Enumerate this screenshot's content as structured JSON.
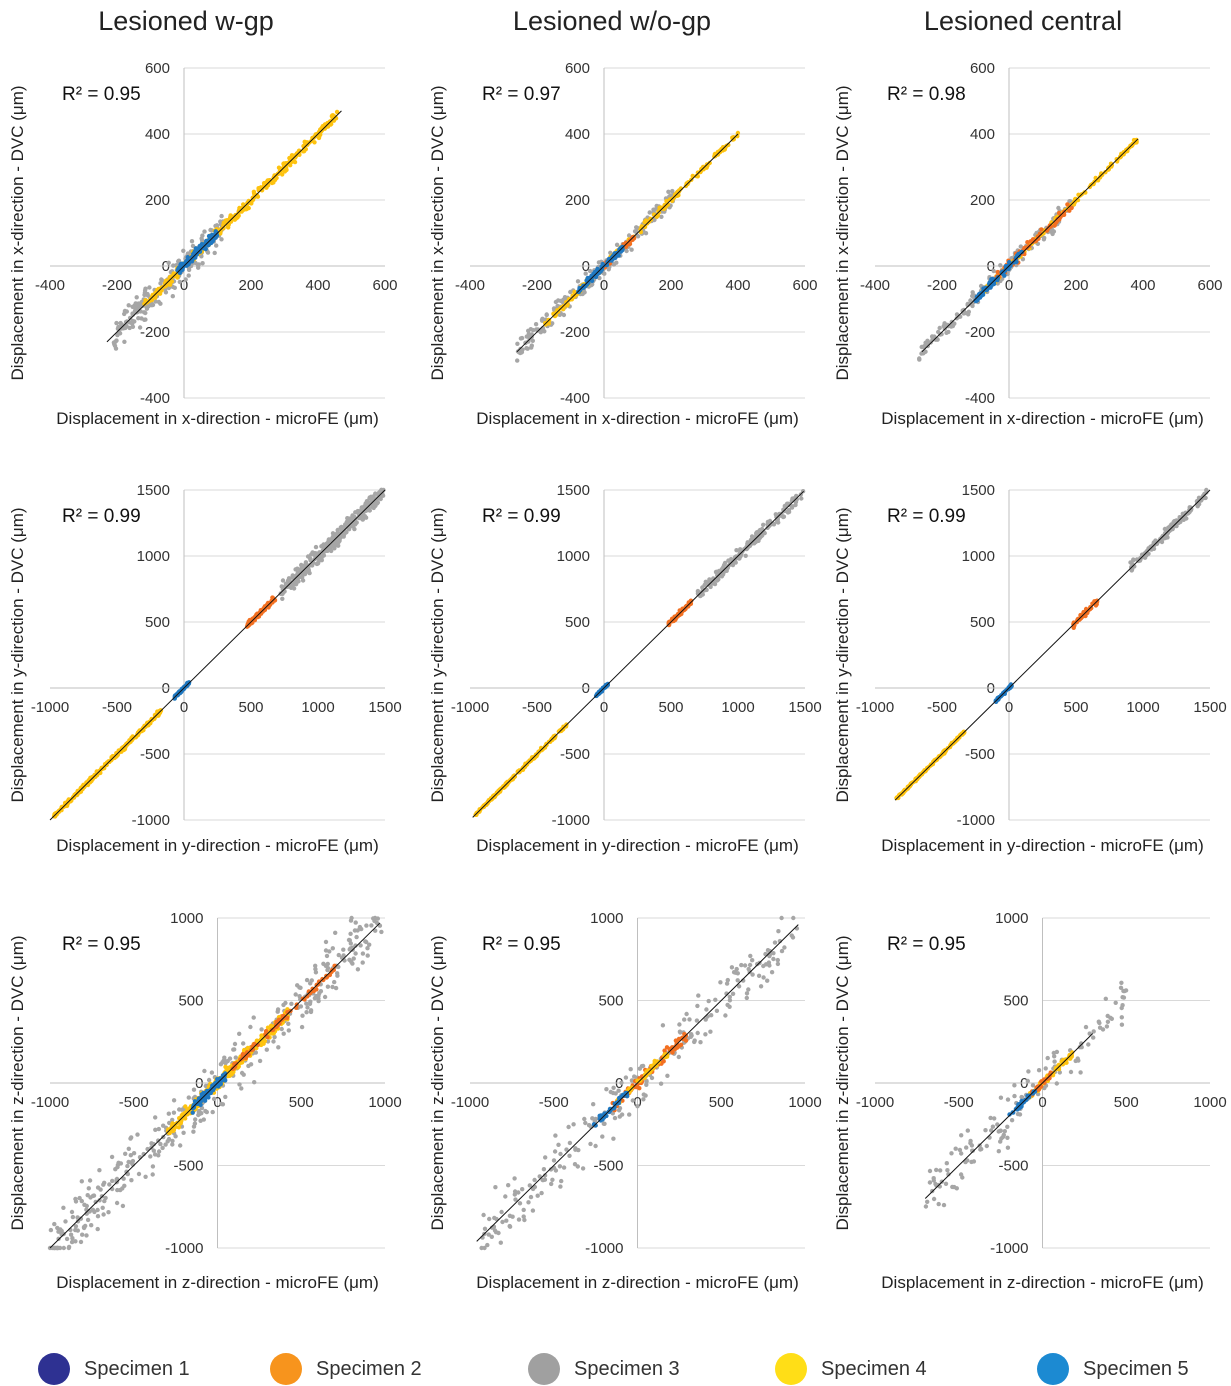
{
  "column_titles": [
    "Lesioned w-gp",
    "Lesioned w/o-gp",
    "Lesioned central"
  ],
  "legend": [
    {
      "label": "Specimen 1",
      "color": "#2e3192"
    },
    {
      "label": "Specimen 2",
      "color": "#f7941d"
    },
    {
      "label": "Specimen 3",
      "color": "#a0a0a0"
    },
    {
      "label": "Specimen 4",
      "color": "#ffde17"
    },
    {
      "label": "Specimen 5",
      "color": "#1c8ad2"
    }
  ],
  "series_colors": {
    "Specimen 2": "#f37021",
    "Specimen 3": "#a6a6a6",
    "Specimen 4": "#fec30f",
    "Specimen 5": "#1f78c1"
  },
  "chart_data": [
    {
      "type": "scatter",
      "panel": "x-w-gp",
      "xlabel": "Displacement in x-direction - microFE (μm)",
      "ylabel": "Displacement in x-direction - DVC (μm)",
      "r2": "R² = 0.95",
      "xlim": [
        -400,
        600
      ],
      "ylim": [
        -400,
        600
      ],
      "ticks": [
        -400,
        -200,
        0,
        200,
        400,
        600
      ],
      "tick_labels": [
        "-400",
        "-200",
        "0",
        "200",
        "400",
        "600"
      ],
      "fit": [
        [
          -230,
          -230
        ],
        [
          470,
          470
        ]
      ],
      "series": [
        {
          "name": "Specimen 3",
          "ranges": [
            [
              -210,
              120
            ]
          ],
          "spread": 40,
          "n": 220
        },
        {
          "name": "Specimen 4",
          "ranges": [
            [
              -120,
              460
            ]
          ],
          "spread": 12,
          "n": 320
        },
        {
          "name": "Specimen 5",
          "ranges": [
            [
              -20,
              100
            ]
          ],
          "spread": 12,
          "n": 110
        }
      ]
    },
    {
      "type": "scatter",
      "panel": "x-w/o-gp",
      "xlabel": "Displacement in x-direction - microFE (μm)",
      "ylabel": "Displacement in x-direction - DVC (μm)",
      "r2": "R² = 0.97",
      "xlim": [
        -400,
        600
      ],
      "ylim": [
        -400,
        600
      ],
      "ticks": [
        -400,
        -200,
        0,
        200,
        400,
        600
      ],
      "tick_labels": [
        "-400",
        "-200",
        "0",
        "200",
        "400",
        "600"
      ],
      "fit": [
        [
          -260,
          -260
        ],
        [
          400,
          400
        ]
      ],
      "series": [
        {
          "name": "Specimen 3",
          "ranges": [
            [
              -260,
              220
            ]
          ],
          "spread": 28,
          "n": 220
        },
        {
          "name": "Specimen 4",
          "ranges": [
            [
              -180,
              400
            ]
          ],
          "spread": 8,
          "n": 180
        },
        {
          "name": "Specimen 2",
          "ranges": [
            [
              0,
              90
            ]
          ],
          "spread": 10,
          "n": 40
        },
        {
          "name": "Specimen 5",
          "ranges": [
            [
              -80,
              60
            ]
          ],
          "spread": 10,
          "n": 80
        }
      ]
    },
    {
      "type": "scatter",
      "panel": "x-central",
      "xlabel": "Displacement in x-direction - microFE (μm)",
      "ylabel": "Displacement in x-direction - DVC (μm)",
      "r2": "R² = 0.98",
      "xlim": [
        -400,
        600
      ],
      "ylim": [
        -400,
        600
      ],
      "ticks": [
        -400,
        -200,
        0,
        200,
        400,
        600
      ],
      "tick_labels": [
        "-400",
        "-200",
        "0",
        "200",
        "400",
        "600"
      ],
      "fit": [
        [
          -260,
          -260
        ],
        [
          385,
          385
        ]
      ],
      "series": [
        {
          "name": "Specimen 3",
          "ranges": [
            [
              -270,
              200
            ]
          ],
          "spread": 22,
          "n": 200
        },
        {
          "name": "Specimen 4",
          "ranges": [
            [
              -80,
              385
            ]
          ],
          "spread": 6,
          "n": 150
        },
        {
          "name": "Specimen 2",
          "ranges": [
            [
              -40,
              190
            ]
          ],
          "spread": 14,
          "n": 70
        },
        {
          "name": "Specimen 5",
          "ranges": [
            [
              -100,
              40
            ]
          ],
          "spread": 10,
          "n": 70
        }
      ]
    },
    {
      "type": "scatter",
      "panel": "y-w-gp",
      "xlabel": "Displacement in y-direction - microFE (μm)",
      "ylabel": "Displacement in y-direction - DVC (μm)",
      "r2": "R² = 0.99",
      "xlim": [
        -1000,
        1500
      ],
      "ylim": [
        -1000,
        1500
      ],
      "ticks": [
        -1000,
        -500,
        0,
        500,
        1000,
        1500
      ],
      "tick_labels": [
        "-1000",
        "-500",
        "0",
        "500",
        "1000",
        "1500"
      ],
      "fit": [
        [
          -1000,
          -1000
        ],
        [
          1500,
          1500
        ]
      ],
      "series": [
        {
          "name": "Specimen 3",
          "ranges": [
            [
              720,
              1490
            ]
          ],
          "spread": 55,
          "n": 300
        },
        {
          "name": "Specimen 2",
          "ranges": [
            [
              470,
              680
            ]
          ],
          "spread": 18,
          "n": 90
        },
        {
          "name": "Specimen 4",
          "ranges": [
            [
              -970,
              -170
            ]
          ],
          "spread": 15,
          "n": 260
        },
        {
          "name": "Specimen 5",
          "ranges": [
            [
              -70,
              40
            ]
          ],
          "spread": 10,
          "n": 70
        }
      ]
    },
    {
      "type": "scatter",
      "panel": "y-w/o-gp",
      "xlabel": "Displacement in y-direction - microFE (μm)",
      "ylabel": "Displacement in y-direction - DVC (μm)",
      "r2": "R² = 0.99",
      "xlim": [
        -1000,
        1500
      ],
      "ylim": [
        -1000,
        1500
      ],
      "ticks": [
        -1000,
        -500,
        0,
        500,
        1000,
        1500
      ],
      "tick_labels": [
        "-1000",
        "-500",
        "0",
        "500",
        "1000",
        "1500"
      ],
      "fit": [
        [
          -980,
          -980
        ],
        [
          1490,
          1490
        ]
      ],
      "series": [
        {
          "name": "Specimen 3",
          "ranges": [
            [
              700,
              1490
            ]
          ],
          "spread": 40,
          "n": 200
        },
        {
          "name": "Specimen 2",
          "ranges": [
            [
              480,
              650
            ]
          ],
          "spread": 16,
          "n": 70
        },
        {
          "name": "Specimen 4",
          "ranges": [
            [
              -960,
              -280
            ]
          ],
          "spread": 10,
          "n": 200
        },
        {
          "name": "Specimen 5",
          "ranges": [
            [
              -60,
              30
            ]
          ],
          "spread": 8,
          "n": 50
        }
      ]
    },
    {
      "type": "scatter",
      "panel": "y-central",
      "xlabel": "Displacement in y-direction - microFE (μm)",
      "ylabel": "Displacement in y-direction - DVC (μm)",
      "r2": "R² = 0.99",
      "xlim": [
        -1000,
        1500
      ],
      "ylim": [
        -1000,
        1500
      ],
      "ticks": [
        -1000,
        -500,
        0,
        500,
        1000,
        1500
      ],
      "tick_labels": [
        "-1000",
        "-500",
        "0",
        "500",
        "1000",
        "1500"
      ],
      "fit": [
        [
          -850,
          -850
        ],
        [
          1500,
          1500
        ]
      ],
      "series": [
        {
          "name": "Specimen 3",
          "ranges": [
            [
              900,
              1480
            ]
          ],
          "spread": 30,
          "n": 140
        },
        {
          "name": "Specimen 2",
          "ranges": [
            [
              480,
              660
            ]
          ],
          "spread": 18,
          "n": 40
        },
        {
          "name": "Specimen 4",
          "ranges": [
            [
              -840,
              -330
            ]
          ],
          "spread": 8,
          "n": 150
        },
        {
          "name": "Specimen 5",
          "ranges": [
            [
              -100,
              20
            ]
          ],
          "spread": 8,
          "n": 40
        }
      ]
    },
    {
      "type": "scatter",
      "panel": "z-w-gp",
      "xlabel": "Displacement in z-direction - microFE (μm)",
      "ylabel": "Displacement in z-direction - DVC (μm)",
      "r2": "R² = 0.95",
      "xlim": [
        -1000,
        1000
      ],
      "ylim": [
        -1000,
        1000
      ],
      "ticks": [
        -1000,
        -500,
        0,
        500,
        1000
      ],
      "tick_labels": [
        "-1000",
        "-500",
        "0",
        "500",
        "1000"
      ],
      "fit": [
        [
          -1000,
          -1000
        ],
        [
          970,
          970
        ]
      ],
      "series": [
        {
          "name": "Specimen 3",
          "ranges": [
            [
              -1000,
              980
            ]
          ],
          "spread": 150,
          "n": 380
        },
        {
          "name": "Specimen 4",
          "ranges": [
            [
              -300,
              420
            ]
          ],
          "spread": 30,
          "n": 320
        },
        {
          "name": "Specimen 2",
          "ranges": [
            [
              80,
              700
            ]
          ],
          "spread": 20,
          "n": 80
        },
        {
          "name": "Specimen 5",
          "ranges": [
            [
              -150,
              50
            ]
          ],
          "spread": 25,
          "n": 90
        }
      ]
    },
    {
      "type": "scatter",
      "panel": "z-w/o-gp",
      "xlabel": "Displacement in z-direction - microFE (μm)",
      "ylabel": "Displacement in z-direction - DVC (μm)",
      "r2": "R² = 0.95",
      "xlim": [
        -1000,
        1000
      ],
      "ylim": [
        -1000,
        1000
      ],
      "ticks": [
        -1000,
        -500,
        0,
        500,
        1000
      ],
      "tick_labels": [
        "-1000",
        "-500",
        "0",
        "500",
        "1000"
      ],
      "fit": [
        [
          -960,
          -960
        ],
        [
          960,
          960
        ]
      ],
      "series": [
        {
          "name": "Specimen 3",
          "ranges": [
            [
              -960,
              960
            ]
          ],
          "spread": 140,
          "n": 240
        },
        {
          "name": "Specimen 2",
          "ranges": [
            [
              -150,
              300
            ]
          ],
          "spread": 30,
          "n": 80
        },
        {
          "name": "Specimen 4",
          "ranges": [
            [
              -120,
              180
            ]
          ],
          "spread": 20,
          "n": 50
        },
        {
          "name": "Specimen 5",
          "ranges": [
            [
              -260,
              -60
            ]
          ],
          "spread": 18,
          "n": 40
        }
      ]
    },
    {
      "type": "scatter",
      "panel": "z-central",
      "xlabel": "Displacement in z-direction - microFE (μm)",
      "ylabel": "Displacement in z-direction - DVC (μm)",
      "r2": "R² = 0.95",
      "xlim": [
        -1000,
        1000
      ],
      "ylim": [
        -1000,
        1000
      ],
      "ticks": [
        -1000,
        -500,
        0,
        500,
        1000
      ],
      "tick_labels": [
        "-1000",
        "-500",
        "0",
        "500",
        "1000"
      ],
      "fit": [
        [
          -700,
          -700
        ],
        [
          300,
          300
        ]
      ],
      "series": [
        {
          "name": "Specimen 3",
          "ranges": [
            [
              -700,
              500
            ]
          ],
          "spread": 120,
          "n": 140
        },
        {
          "name": "Specimen 4",
          "ranges": [
            [
              -80,
              180
            ]
          ],
          "spread": 18,
          "n": 60
        },
        {
          "name": "Specimen 2",
          "ranges": [
            [
              -80,
              50
            ]
          ],
          "spread": 14,
          "n": 20
        },
        {
          "name": "Specimen 5",
          "ranges": [
            [
              -200,
              -40
            ]
          ],
          "spread": 14,
          "n": 30
        }
      ]
    }
  ]
}
